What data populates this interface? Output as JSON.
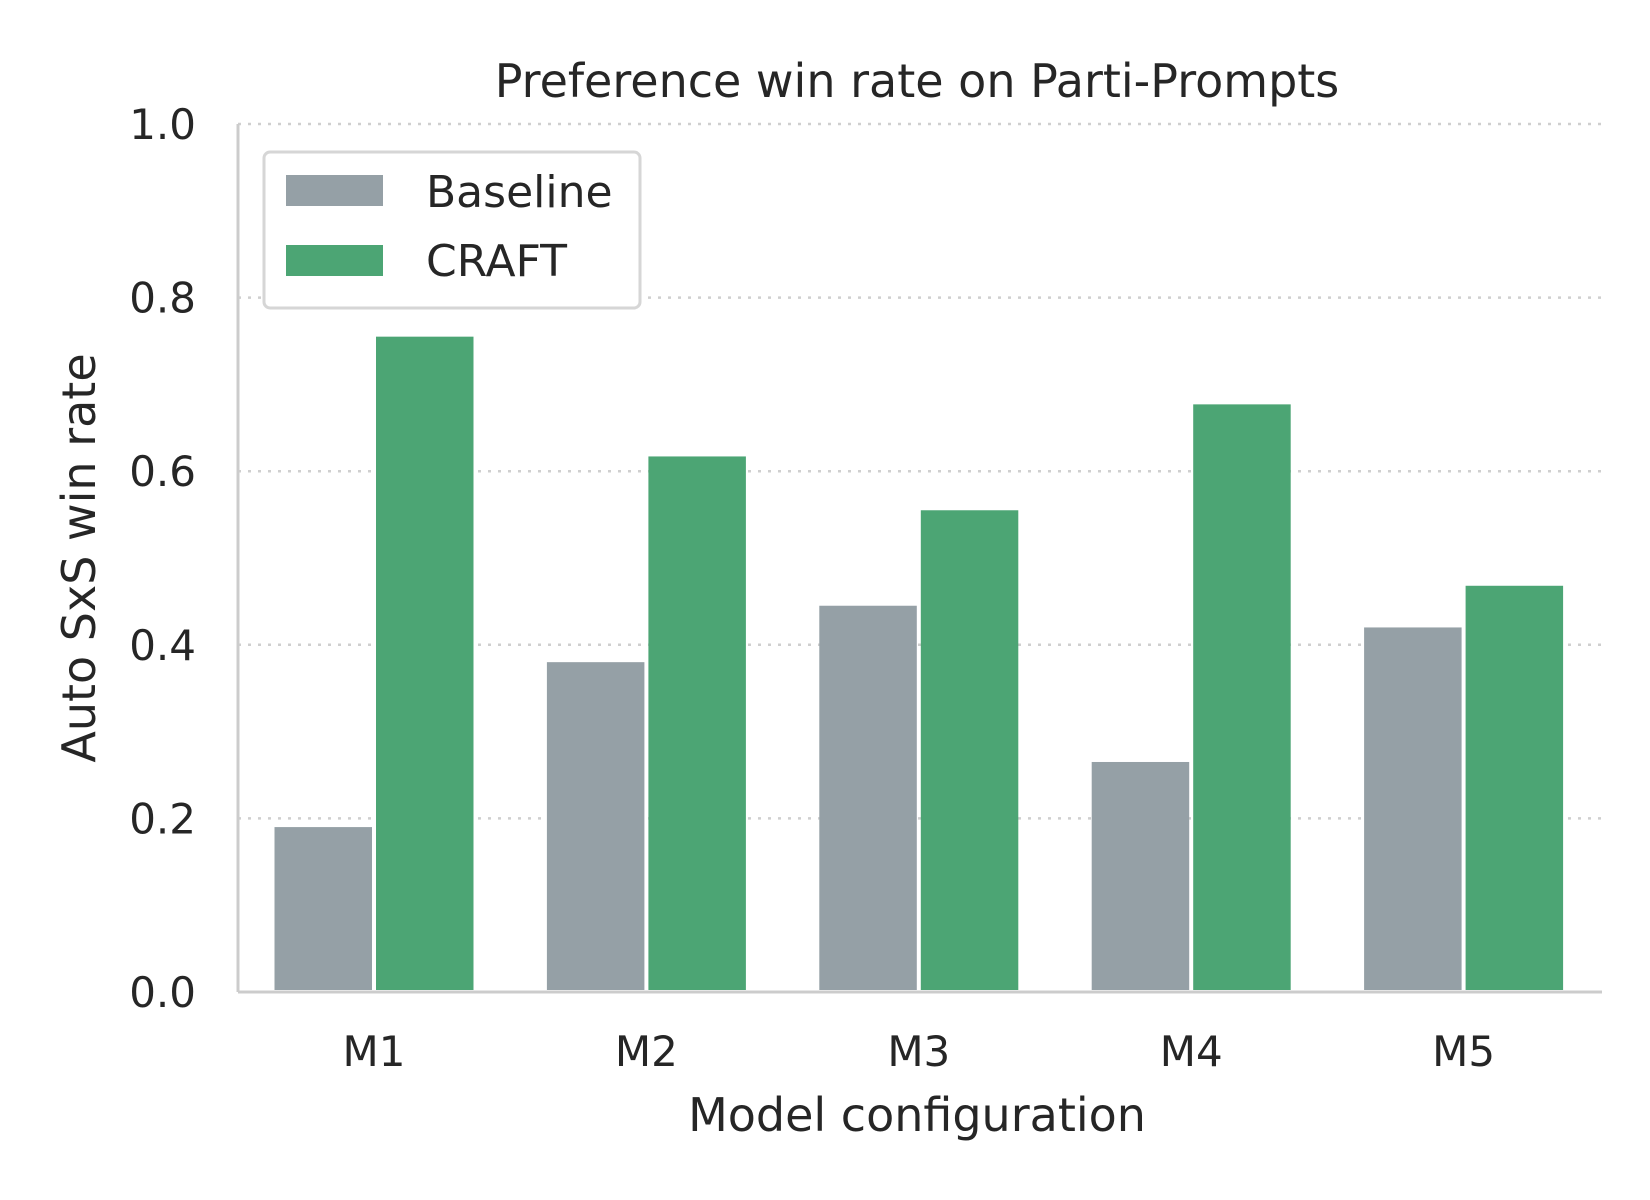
{
  "chart_data": {
    "type": "bar",
    "title": "Preference win rate on Parti-Prompts",
    "xlabel": "Model configuration",
    "ylabel": "Auto SxS win rate",
    "categories": [
      "M1",
      "M2",
      "M3",
      "M4",
      "M5"
    ],
    "series": [
      {
        "name": "Baseline",
        "color": "#95a0a6",
        "values": [
          0.19,
          0.38,
          0.445,
          0.265,
          0.42
        ]
      },
      {
        "name": "CRAFT",
        "color": "#4ca574",
        "values": [
          0.755,
          0.617,
          0.555,
          0.677,
          0.468
        ]
      }
    ],
    "ylim": [
      0,
      1.0
    ],
    "yticks": [
      "0.0",
      "0.2",
      "0.4",
      "0.6",
      "0.8",
      "1.0"
    ],
    "grid": true,
    "legend_position": "top-left"
  }
}
